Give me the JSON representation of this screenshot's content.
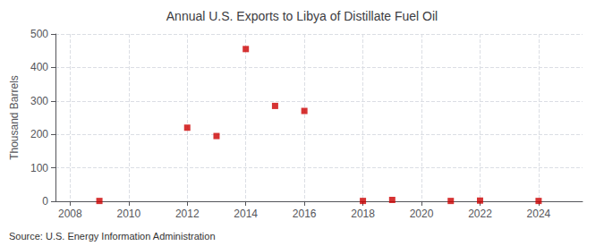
{
  "chart_data": {
    "type": "scatter",
    "title": "Annual U.S. Exports to Libya of Distillate Fuel Oil",
    "ylabel": "Thousand Barrels",
    "annotation": "Source: U.S. Energy Information Administration",
    "x": [
      2009,
      2012,
      2013,
      2014,
      2015,
      2016,
      2018,
      2019,
      2021,
      2022,
      2024
    ],
    "values": [
      1,
      220,
      195,
      455,
      285,
      270,
      1,
      4,
      1,
      2,
      1
    ],
    "color": "#cc0000",
    "marker": "square",
    "xlim": [
      2007.5,
      2025.5
    ],
    "ylim": [
      0,
      500
    ],
    "xticks": [
      2008,
      2010,
      2012,
      2014,
      2016,
      2018,
      2020,
      2022,
      2024
    ],
    "yticks": [
      0,
      100,
      200,
      300,
      400,
      500
    ],
    "grid": true
  }
}
